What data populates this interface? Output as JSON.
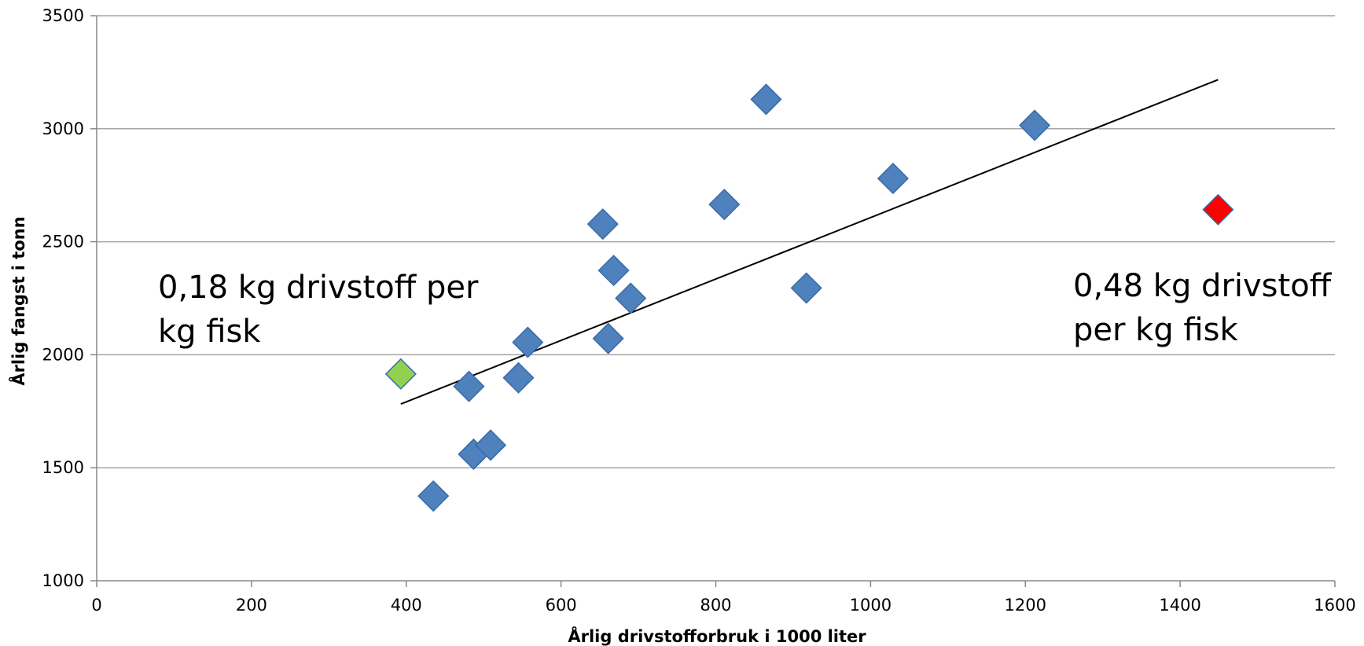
{
  "chart_data": {
    "type": "scatter",
    "xlabel": "Årlig drivstofforbruk i 1000 liter",
    "ylabel": "Årlig fangst i tonn",
    "xlim": [
      0,
      1600
    ],
    "ylim": [
      1000,
      3500
    ],
    "xticks": [
      "0",
      "200",
      "400",
      "600",
      "800",
      "1000",
      "1200",
      "1400",
      "1600"
    ],
    "yticks": [
      "1000",
      "1500",
      "2000",
      "2500",
      "3000",
      "3500"
    ],
    "grid": "horizontal",
    "colors": {
      "default": "#4F81BD",
      "low": "#92D050",
      "high": "#FF0000",
      "trend": "#000000",
      "grid": "#A6A6A6"
    },
    "points": [
      {
        "x": 393,
        "y": 1915,
        "color": "low"
      },
      {
        "x": 435,
        "y": 1375
      },
      {
        "x": 481,
        "y": 1860
      },
      {
        "x": 487,
        "y": 1560
      },
      {
        "x": 509,
        "y": 1600
      },
      {
        "x": 545,
        "y": 1898
      },
      {
        "x": 557,
        "y": 2055
      },
      {
        "x": 654,
        "y": 2578
      },
      {
        "x": 661,
        "y": 2072
      },
      {
        "x": 668,
        "y": 2373
      },
      {
        "x": 690,
        "y": 2250
      },
      {
        "x": 811,
        "y": 2665
      },
      {
        "x": 865,
        "y": 3130
      },
      {
        "x": 917,
        "y": 2295
      },
      {
        "x": 1029,
        "y": 2780
      },
      {
        "x": 1212,
        "y": 3015
      },
      {
        "x": 1449,
        "y": 2642,
        "color": "high"
      }
    ],
    "trendline": {
      "x1": 393,
      "y1": 1782,
      "x2": 1449,
      "y2": 3217
    },
    "annotations": [
      {
        "lines": [
          "0,18 kg drivstoff per",
          "kg fisk"
        ]
      },
      {
        "lines": [
          "0,48 kg drivstoff",
          "per kg fisk"
        ]
      }
    ]
  }
}
